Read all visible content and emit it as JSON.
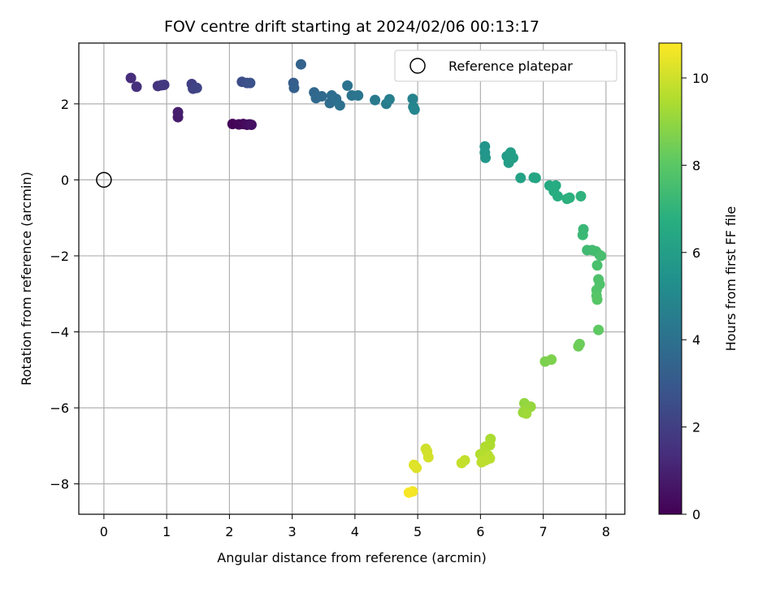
{
  "chart_data": {
    "type": "scatter",
    "title": "FOV centre drift starting at 2024/02/06 00:13:17",
    "xlabel": "Angular distance from reference (arcmin)",
    "ylabel": "Rotation from reference (arcmin)",
    "xlim": [
      -0.4,
      8.3
    ],
    "ylim": [
      -8.8,
      3.6
    ],
    "xticks": [
      0,
      1,
      2,
      3,
      4,
      5,
      6,
      7,
      8
    ],
    "yticks": [
      -8,
      -6,
      -4,
      -2,
      0,
      2
    ],
    "grid": true,
    "legend": {
      "placement": "top-right",
      "entries": [
        "Reference platepar"
      ]
    },
    "reference_point": {
      "x": 0,
      "y": 0
    },
    "colorbar": {
      "label": "Hours from first FF file",
      "colormap": "viridis",
      "range": [
        0,
        10.8
      ],
      "ticks": [
        0,
        2,
        4,
        6,
        8,
        10
      ]
    },
    "points": [
      {
        "x": 2.05,
        "y": 1.47,
        "c": 0.1
      },
      {
        "x": 2.15,
        "y": 1.46,
        "c": 0.15
      },
      {
        "x": 2.22,
        "y": 1.47,
        "c": 0.2
      },
      {
        "x": 2.28,
        "y": 1.45,
        "c": 0.3
      },
      {
        "x": 2.32,
        "y": 1.46,
        "c": 0.4
      },
      {
        "x": 2.35,
        "y": 1.45,
        "c": 0.5
      },
      {
        "x": 1.18,
        "y": 1.65,
        "c": 0.8
      },
      {
        "x": 1.18,
        "y": 1.78,
        "c": 0.9
      },
      {
        "x": 0.43,
        "y": 2.68,
        "c": 1.4
      },
      {
        "x": 0.52,
        "y": 2.45,
        "c": 1.5
      },
      {
        "x": 0.86,
        "y": 2.47,
        "c": 1.6
      },
      {
        "x": 0.92,
        "y": 2.49,
        "c": 1.7
      },
      {
        "x": 0.96,
        "y": 2.5,
        "c": 1.8
      },
      {
        "x": 1.4,
        "y": 2.52,
        "c": 2.0
      },
      {
        "x": 1.42,
        "y": 2.4,
        "c": 2.1
      },
      {
        "x": 1.48,
        "y": 2.42,
        "c": 2.2
      },
      {
        "x": 2.2,
        "y": 2.58,
        "c": 2.5
      },
      {
        "x": 2.28,
        "y": 2.55,
        "c": 2.6
      },
      {
        "x": 2.33,
        "y": 2.55,
        "c": 2.7
      },
      {
        "x": 3.02,
        "y": 2.55,
        "c": 3.2
      },
      {
        "x": 3.03,
        "y": 2.42,
        "c": 3.3
      },
      {
        "x": 3.14,
        "y": 3.04,
        "c": 3.4
      },
      {
        "x": 3.35,
        "y": 2.3,
        "c": 3.6
      },
      {
        "x": 3.38,
        "y": 2.15,
        "c": 3.65
      },
      {
        "x": 3.47,
        "y": 2.2,
        "c": 3.7
      },
      {
        "x": 3.6,
        "y": 2.02,
        "c": 3.8
      },
      {
        "x": 3.63,
        "y": 2.22,
        "c": 3.85
      },
      {
        "x": 3.7,
        "y": 2.13,
        "c": 3.9
      },
      {
        "x": 3.76,
        "y": 1.96,
        "c": 4.0
      },
      {
        "x": 3.88,
        "y": 2.48,
        "c": 4.05
      },
      {
        "x": 3.95,
        "y": 2.22,
        "c": 4.1
      },
      {
        "x": 4.05,
        "y": 2.22,
        "c": 4.2
      },
      {
        "x": 4.32,
        "y": 2.1,
        "c": 4.4
      },
      {
        "x": 4.5,
        "y": 2.0,
        "c": 4.5
      },
      {
        "x": 4.55,
        "y": 2.12,
        "c": 4.6
      },
      {
        "x": 4.92,
        "y": 2.13,
        "c": 4.8
      },
      {
        "x": 4.93,
        "y": 1.92,
        "c": 4.85
      },
      {
        "x": 4.95,
        "y": 1.85,
        "c": 4.9
      },
      {
        "x": 6.07,
        "y": 0.88,
        "c": 5.6
      },
      {
        "x": 6.07,
        "y": 0.72,
        "c": 5.65
      },
      {
        "x": 6.08,
        "y": 0.58,
        "c": 5.7
      },
      {
        "x": 6.42,
        "y": 0.62,
        "c": 5.9
      },
      {
        "x": 6.45,
        "y": 0.45,
        "c": 5.95
      },
      {
        "x": 6.48,
        "y": 0.72,
        "c": 6.0
      },
      {
        "x": 6.52,
        "y": 0.58,
        "c": 6.05
      },
      {
        "x": 6.64,
        "y": 0.05,
        "c": 6.2
      },
      {
        "x": 6.85,
        "y": 0.06,
        "c": 6.3
      },
      {
        "x": 6.88,
        "y": 0.05,
        "c": 6.35
      },
      {
        "x": 7.1,
        "y": -0.15,
        "c": 6.5
      },
      {
        "x": 7.17,
        "y": -0.3,
        "c": 6.6
      },
      {
        "x": 7.2,
        "y": -0.15,
        "c": 6.62
      },
      {
        "x": 7.23,
        "y": -0.43,
        "c": 6.7
      },
      {
        "x": 7.38,
        "y": -0.5,
        "c": 6.8
      },
      {
        "x": 7.42,
        "y": -0.47,
        "c": 6.85
      },
      {
        "x": 7.6,
        "y": -0.43,
        "c": 6.95
      },
      {
        "x": 7.64,
        "y": -1.3,
        "c": 7.2
      },
      {
        "x": 7.63,
        "y": -1.45,
        "c": 7.25
      },
      {
        "x": 7.7,
        "y": -1.85,
        "c": 7.35
      },
      {
        "x": 7.78,
        "y": -1.85,
        "c": 7.4
      },
      {
        "x": 7.84,
        "y": -1.88,
        "c": 7.45
      },
      {
        "x": 7.9,
        "y": -1.98,
        "c": 7.5
      },
      {
        "x": 7.92,
        "y": -2.0,
        "c": 7.55
      },
      {
        "x": 7.86,
        "y": -2.25,
        "c": 7.6
      },
      {
        "x": 7.88,
        "y": -2.62,
        "c": 7.7
      },
      {
        "x": 7.9,
        "y": -2.75,
        "c": 7.75
      },
      {
        "x": 7.85,
        "y": -2.9,
        "c": 7.8
      },
      {
        "x": 7.85,
        "y": -3.05,
        "c": 7.85
      },
      {
        "x": 7.86,
        "y": -3.15,
        "c": 7.9
      },
      {
        "x": 7.88,
        "y": -3.95,
        "c": 8.1
      },
      {
        "x": 7.58,
        "y": -4.32,
        "c": 8.3
      },
      {
        "x": 7.56,
        "y": -4.38,
        "c": 8.35
      },
      {
        "x": 7.03,
        "y": -4.78,
        "c": 8.6
      },
      {
        "x": 7.13,
        "y": -4.73,
        "c": 8.65
      },
      {
        "x": 6.7,
        "y": -5.88,
        "c": 9.0
      },
      {
        "x": 6.8,
        "y": -5.97,
        "c": 9.05
      },
      {
        "x": 6.72,
        "y": -6.05,
        "c": 9.1
      },
      {
        "x": 6.68,
        "y": -6.12,
        "c": 9.15
      },
      {
        "x": 6.73,
        "y": -6.15,
        "c": 9.2
      },
      {
        "x": 6.16,
        "y": -6.82,
        "c": 9.4
      },
      {
        "x": 6.15,
        "y": -6.98,
        "c": 9.45
      },
      {
        "x": 6.08,
        "y": -7.02,
        "c": 9.5
      },
      {
        "x": 6.0,
        "y": -7.22,
        "c": 9.55
      },
      {
        "x": 6.12,
        "y": -7.25,
        "c": 9.6
      },
      {
        "x": 6.15,
        "y": -7.33,
        "c": 9.65
      },
      {
        "x": 6.08,
        "y": -7.38,
        "c": 9.7
      },
      {
        "x": 6.02,
        "y": -7.43,
        "c": 9.72
      },
      {
        "x": 5.75,
        "y": -7.38,
        "c": 9.8
      },
      {
        "x": 5.7,
        "y": -7.45,
        "c": 9.85
      },
      {
        "x": 5.13,
        "y": -7.08,
        "c": 10.0
      },
      {
        "x": 5.15,
        "y": -7.15,
        "c": 10.05
      },
      {
        "x": 5.17,
        "y": -7.3,
        "c": 10.1
      },
      {
        "x": 4.95,
        "y": -7.52,
        "c": 10.2
      },
      {
        "x": 4.98,
        "y": -7.58,
        "c": 10.25
      },
      {
        "x": 4.94,
        "y": -7.5,
        "c": 10.3
      },
      {
        "x": 4.92,
        "y": -8.2,
        "c": 10.6
      },
      {
        "x": 4.86,
        "y": -8.23,
        "c": 10.7
      }
    ]
  }
}
